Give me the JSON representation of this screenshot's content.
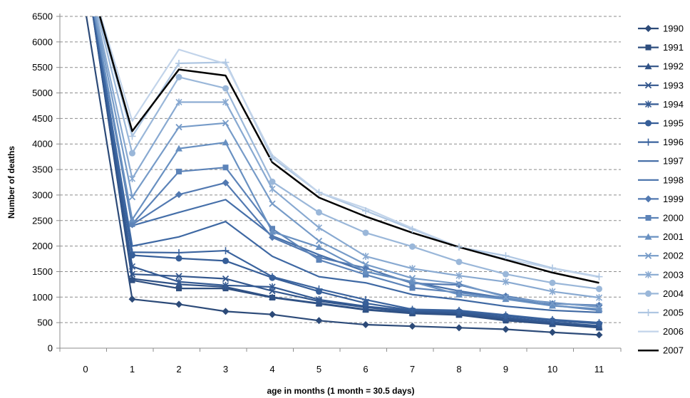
{
  "chart_data": {
    "type": "line",
    "title": "",
    "xlabel": "age in months (1 month = 30.5 days)",
    "ylabel": "Number of deaths",
    "x": [
      0,
      1,
      2,
      3,
      4,
      5,
      6,
      7,
      8,
      9,
      10,
      11
    ],
    "ylim": [
      0,
      6500
    ],
    "yticks": [
      0,
      500,
      1000,
      1500,
      2000,
      2500,
      3000,
      3500,
      4000,
      4500,
      5000,
      5500,
      6000,
      6500
    ],
    "grid": "horizontal-dashed",
    "legend_position": "right",
    "series": [
      {
        "name": "1990",
        "color": "#2c4a78",
        "marker": "diamond",
        "values": [
          6600,
          960,
          860,
          720,
          660,
          540,
          460,
          430,
          400,
          370,
          310,
          260
        ]
      },
      {
        "name": "1991",
        "color": "#2e4e7f",
        "marker": "square",
        "values": [
          7500,
          1330,
          1170,
          1170,
          990,
          870,
          750,
          680,
          650,
          540,
          470,
          400
        ]
      },
      {
        "name": "1992",
        "color": "#305286",
        "marker": "triangle",
        "values": [
          7500,
          1360,
          1250,
          1200,
          1000,
          880,
          760,
          690,
          660,
          560,
          480,
          410
        ]
      },
      {
        "name": "1993",
        "color": "#32568d",
        "marker": "x",
        "values": [
          7500,
          1450,
          1410,
          1360,
          1120,
          920,
          800,
          710,
          680,
          580,
          500,
          430
        ]
      },
      {
        "name": "1994",
        "color": "#345a93",
        "marker": "star",
        "values": [
          7500,
          1600,
          1300,
          1230,
          1200,
          950,
          820,
          730,
          700,
          600,
          510,
          440
        ]
      },
      {
        "name": "1995",
        "color": "#365e98",
        "marker": "circle",
        "values": [
          7500,
          1820,
          1760,
          1710,
          1380,
          1110,
          880,
          740,
          720,
          630,
          540,
          480
        ]
      },
      {
        "name": "1996",
        "color": "#3a639e",
        "marker": "plus",
        "values": [
          7500,
          1880,
          1870,
          1910,
          1400,
          1160,
          950,
          760,
          740,
          650,
          560,
          500
        ]
      },
      {
        "name": "1997",
        "color": "#3e68a3",
        "marker": "none",
        "values": [
          7500,
          2000,
          2180,
          2480,
          1800,
          1400,
          1280,
          1050,
          950,
          820,
          740,
          700
        ]
      },
      {
        "name": "1998",
        "color": "#456fa9",
        "marker": "none",
        "values": [
          7500,
          2400,
          2660,
          2910,
          2200,
          1830,
          1500,
          1300,
          1120,
          980,
          890,
          810
        ]
      },
      {
        "name": "1999",
        "color": "#5279b1",
        "marker": "diamond",
        "values": [
          7500,
          2420,
          3010,
          3240,
          2170,
          1780,
          1570,
          1270,
          1240,
          1020,
          870,
          840
        ]
      },
      {
        "name": "2000",
        "color": "#5c83b8",
        "marker": "square",
        "values": [
          7500,
          2430,
          3460,
          3540,
          2340,
          1730,
          1440,
          1180,
          1090,
          980,
          840,
          740
        ]
      },
      {
        "name": "2001",
        "color": "#6890c1",
        "marker": "triangle",
        "values": [
          7500,
          2520,
          3910,
          4030,
          2280,
          1980,
          1500,
          1300,
          1050,
          960,
          830,
          770
        ]
      },
      {
        "name": "2002",
        "color": "#769bc8",
        "marker": "x",
        "values": [
          7500,
          2960,
          4330,
          4410,
          2830,
          2100,
          1640,
          1370,
          1260,
          1000,
          880,
          820
        ]
      },
      {
        "name": "2003",
        "color": "#88a9d1",
        "marker": "star",
        "values": [
          7500,
          3320,
          4820,
          4820,
          3120,
          2360,
          1800,
          1560,
          1420,
          1300,
          1110,
          990
        ]
      },
      {
        "name": "2004",
        "color": "#9ab7d9",
        "marker": "circle",
        "values": [
          7500,
          3820,
          5310,
          5090,
          3260,
          2660,
          2260,
          1990,
          1690,
          1450,
          1280,
          1160
        ]
      },
      {
        "name": "2005",
        "color": "#aec6e2",
        "marker": "plus",
        "values": [
          7500,
          4150,
          5580,
          5600,
          3730,
          3050,
          2690,
          2330,
          1980,
          1810,
          1570,
          1400
        ]
      },
      {
        "name": "2006",
        "color": "#c2d4ea",
        "marker": "none",
        "values": [
          7500,
          4450,
          5850,
          5570,
          3780,
          3050,
          2740,
          2350,
          1980,
          1750,
          1560,
          1390
        ]
      },
      {
        "name": "2007",
        "color": "#000000",
        "marker": "none",
        "values": [
          7500,
          4250,
          5460,
          5340,
          3640,
          2950,
          2580,
          2260,
          1980,
          1730,
          1480,
          1280
        ]
      }
    ]
  }
}
